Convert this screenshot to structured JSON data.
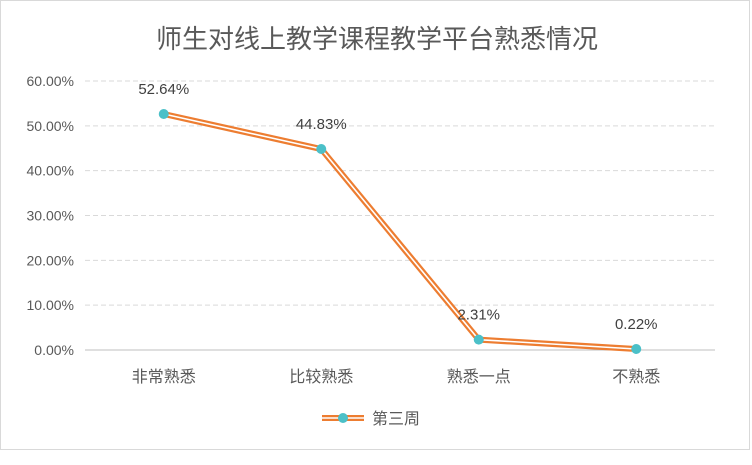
{
  "chart_data": {
    "type": "line",
    "title": "师生对线上教学课程教学平台熟悉情况",
    "categories": [
      "非常熟悉",
      "比较熟悉",
      "熟悉一点",
      "不熟悉"
    ],
    "series": [
      {
        "name": "第三周",
        "values": [
          52.64,
          44.83,
          2.31,
          0.22
        ],
        "labels": [
          "52.64%",
          "44.83%",
          "2.31%",
          "0.22%"
        ]
      }
    ],
    "yticks": [
      "0.00%",
      "10.00%",
      "20.00%",
      "30.00%",
      "40.00%",
      "50.00%",
      "60.00%"
    ],
    "ylim": [
      0,
      60
    ],
    "grid": true,
    "legend": "bottom",
    "colors": {
      "line": "#ED7D31",
      "marker": "#4BC0C8",
      "grid": "#d9d9d9",
      "text": "#595959"
    }
  }
}
